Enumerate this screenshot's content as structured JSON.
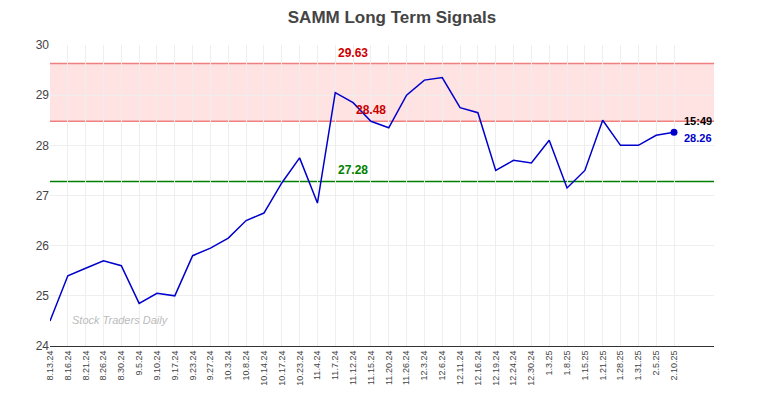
{
  "chart_data": {
    "type": "line",
    "title": "SAMM Long Term Signals",
    "categories": [
      "8.13.24",
      "8.16.24",
      "8.21.24",
      "8.26.24",
      "8.30.24",
      "9.5.24",
      "9.10.24",
      "9.17.24",
      "9.23.24",
      "9.27.24",
      "10.3.24",
      "10.8.24",
      "10.14.24",
      "10.17.24",
      "10.23.24",
      "11.4.24",
      "11.7.24",
      "11.12.24",
      "11.15.24",
      "11.20.24",
      "11.26.24",
      "12.3.24",
      "12.6.24",
      "12.11.24",
      "12.16.24",
      "12.19.24",
      "12.24.24",
      "12.30.24",
      "1.3.25",
      "1.8.25",
      "1.15.25",
      "1.21.25",
      "1.28.25",
      "1.31.25",
      "2.5.25",
      "2.10.25"
    ],
    "values": [
      24.5,
      25.4,
      25.55,
      25.7,
      25.6,
      24.85,
      25.05,
      25.0,
      25.8,
      25.95,
      26.15,
      26.5,
      26.65,
      27.25,
      27.75,
      26.85,
      29.05,
      28.85,
      28.48,
      28.35,
      29.0,
      29.3,
      29.35,
      28.75,
      28.65,
      27.5,
      27.7,
      27.65,
      28.1,
      27.15,
      27.5,
      28.5,
      28.0,
      28.0,
      28.2,
      28.26
    ],
    "color": "#0000cc",
    "marker": "circle",
    "ylim": [
      24,
      30
    ],
    "yticks": [
      24,
      25,
      26,
      27,
      28,
      29,
      30
    ],
    "grid": true,
    "band": {
      "values": [
        28.48,
        29.63
      ],
      "color": "#ffd5d5"
    },
    "reference_lines": [
      {
        "value": 29.63,
        "color": "#f08080",
        "label": "29.63",
        "label_color": "#cc0000",
        "label_x": "11.12.24"
      },
      {
        "value": 28.48,
        "color": "#f08080",
        "label": "28.48",
        "label_color": "#cc0000",
        "label_x": "11.15.24"
      },
      {
        "value": 27.28,
        "color": "#008000",
        "label": "27.28",
        "label_color": "#008000",
        "label_x": "11.12.24"
      }
    ],
    "annotations": [
      {
        "text": "15:49",
        "color": "#000000"
      },
      {
        "text": "28.26",
        "color": "#0000cc"
      }
    ],
    "watermark": "Stock Traders Daily"
  }
}
